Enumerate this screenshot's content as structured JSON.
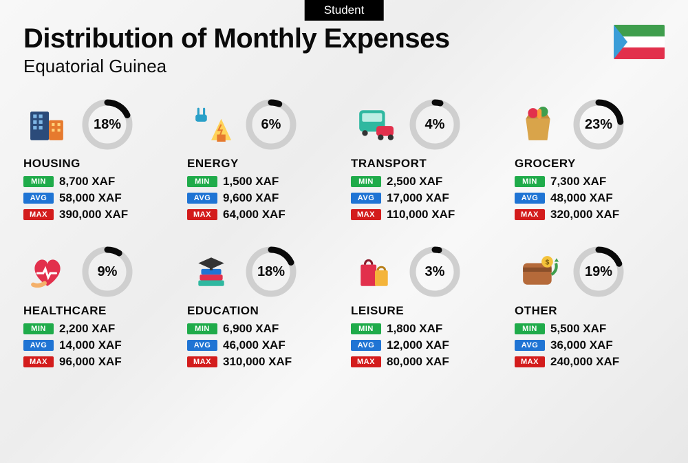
{
  "pill": "Student",
  "title": "Distribution of Monthly Expenses",
  "subtitle": "Equatorial Guinea",
  "currency": "XAF",
  "flag": {
    "stripes": [
      "#3f9e4d",
      "#ffffff",
      "#e2304c"
    ],
    "triangle": "#3a9dd8"
  },
  "badge_labels": {
    "min": "MIN",
    "avg": "AVG",
    "max": "MAX"
  },
  "badge_colors": {
    "min": "#1fab4a",
    "avg": "#1f74d4",
    "max": "#d31c1c"
  },
  "donut": {
    "track_color": "#cfcfcf",
    "arc_color": "#0a0a0a",
    "stroke_width": 9,
    "radius": 32
  },
  "categories": [
    {
      "key": "housing",
      "name": "HOUSING",
      "percent": 18,
      "min": "8,700",
      "avg": "58,000",
      "max": "390,000",
      "icon": "housing-icon"
    },
    {
      "key": "energy",
      "name": "ENERGY",
      "percent": 6,
      "min": "1,500",
      "avg": "9,600",
      "max": "64,000",
      "icon": "energy-icon"
    },
    {
      "key": "transport",
      "name": "TRANSPORT",
      "percent": 4,
      "min": "2,500",
      "avg": "17,000",
      "max": "110,000",
      "icon": "transport-icon"
    },
    {
      "key": "grocery",
      "name": "GROCERY",
      "percent": 23,
      "min": "7,300",
      "avg": "48,000",
      "max": "320,000",
      "icon": "grocery-icon"
    },
    {
      "key": "healthcare",
      "name": "HEALTHCARE",
      "percent": 9,
      "min": "2,200",
      "avg": "14,000",
      "max": "96,000",
      "icon": "healthcare-icon"
    },
    {
      "key": "education",
      "name": "EDUCATION",
      "percent": 18,
      "min": "6,900",
      "avg": "46,000",
      "max": "310,000",
      "icon": "education-icon"
    },
    {
      "key": "leisure",
      "name": "LEISURE",
      "percent": 3,
      "min": "1,800",
      "avg": "12,000",
      "max": "80,000",
      "icon": "leisure-icon"
    },
    {
      "key": "other",
      "name": "OTHER",
      "percent": 19,
      "min": "5,500",
      "avg": "36,000",
      "max": "240,000",
      "icon": "other-icon"
    }
  ]
}
